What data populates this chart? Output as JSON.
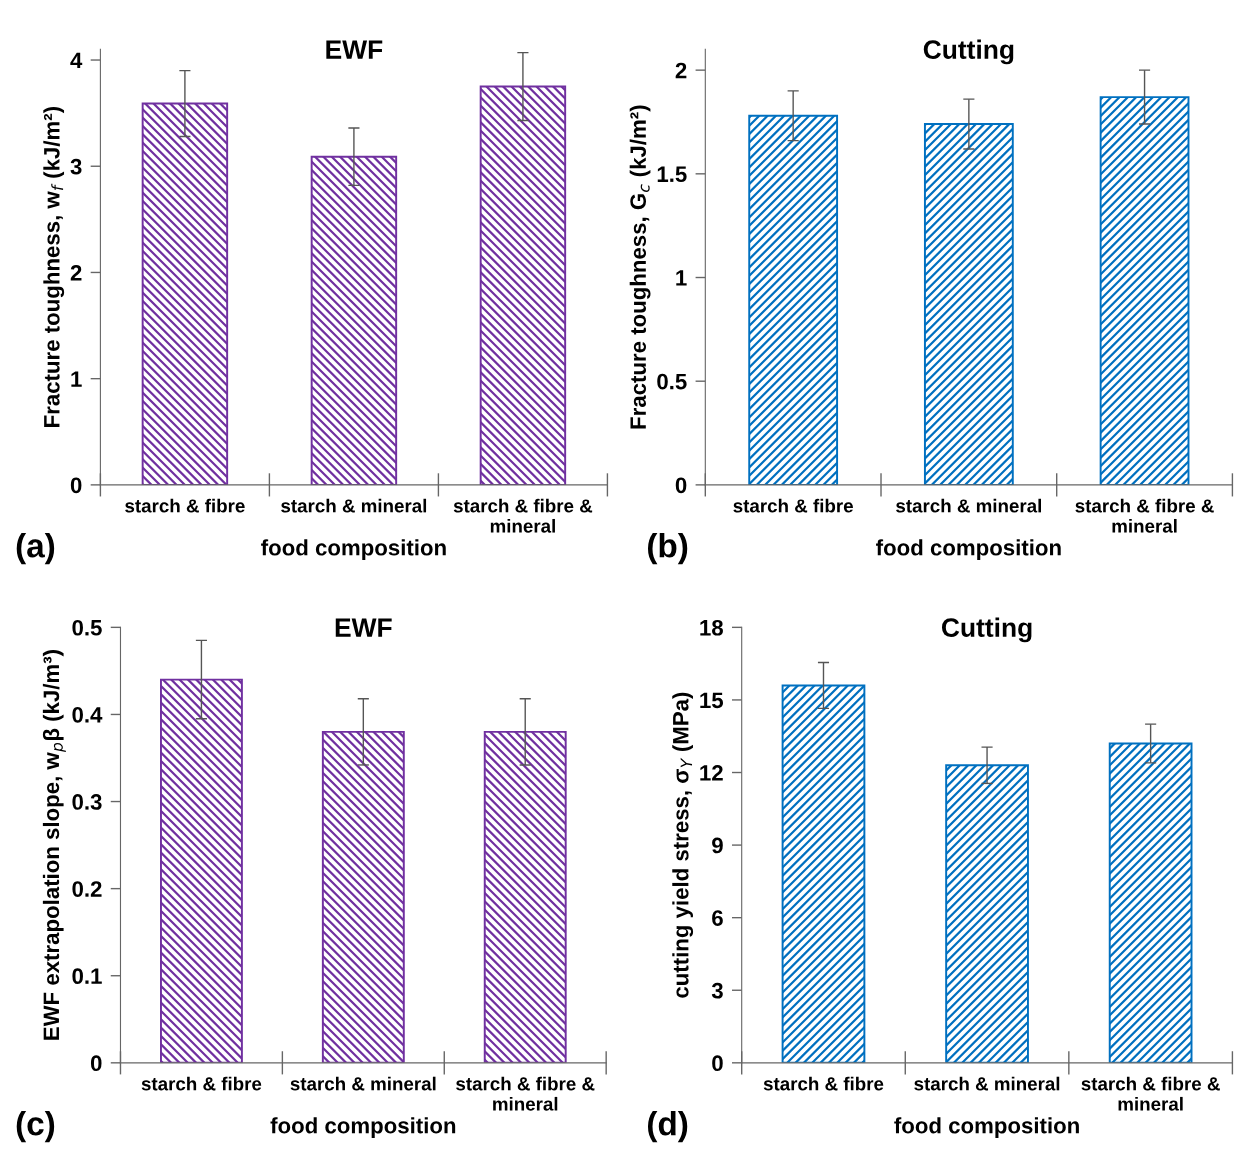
{
  "chart_data": [
    {
      "type": "bar",
      "title": "EWF",
      "xlabel": "food composition",
      "ylabel": "Fracture toughness, w$_{f}$ (kJ/m²)",
      "annotations": [
        "(a)"
      ],
      "categories": [
        "starch & fibre",
        "starch & mineral",
        "starch & fibre &\nmineral"
      ],
      "values": [
        3.59,
        3.09,
        3.75
      ],
      "errors": [
        0.31,
        0.27,
        0.32
      ],
      "color": "#7030a0",
      "ylim": [
        0,
        4.1
      ],
      "yticks": [
        0,
        1,
        2,
        3,
        4
      ],
      "grid": false,
      "legend": false
    },
    {
      "type": "bar",
      "title": "Cutting",
      "xlabel": "food composition",
      "ylabel": "Fracture toughness, G$_{c}$ (kJ/m²)",
      "annotations": [
        "(b)"
      ],
      "categories": [
        "starch & fibre",
        "starch & mineral",
        "starch & fibre &\nmineral"
      ],
      "values": [
        1.78,
        1.74,
        1.87
      ],
      "errors": [
        0.12,
        0.12,
        0.13
      ],
      "color": "#0070c0",
      "ylim": [
        0,
        2.1
      ],
      "yticks": [
        0,
        0.5,
        1,
        1.5,
        2
      ],
      "grid": false,
      "legend": false
    },
    {
      "type": "bar",
      "title": "EWF",
      "xlabel": "food composition",
      "ylabel": "EWF extrapolation slope, w$_{p}$β (kJ/m³)",
      "annotations": [
        "(c)"
      ],
      "categories": [
        "starch & fibre",
        "starch & mineral",
        "starch & fibre &\nmineral"
      ],
      "values": [
        0.44,
        0.38,
        0.38
      ],
      "errors": [
        0.045,
        0.038,
        0.038
      ],
      "color": "#7030a0",
      "ylim": [
        0,
        0.5
      ],
      "yticks": [
        0,
        0.1,
        0.2,
        0.3,
        0.4,
        0.5
      ],
      "grid": false,
      "legend": false
    },
    {
      "type": "bar",
      "title": "Cutting",
      "xlabel": "food composition",
      "ylabel": "cutting yield stress, σ$_{Y}$ (MPa)",
      "annotations": [
        "(d)"
      ],
      "categories": [
        "starch & fibre",
        "starch & mineral",
        "starch & fibre &\nmineral"
      ],
      "values": [
        15.6,
        12.3,
        13.2
      ],
      "errors": [
        0.95,
        0.75,
        0.8
      ],
      "color": "#0070c0",
      "ylim": [
        0,
        18
      ],
      "yticks": [
        0,
        3,
        6,
        9,
        12,
        15,
        18
      ],
      "grid": false,
      "legend": false
    }
  ]
}
